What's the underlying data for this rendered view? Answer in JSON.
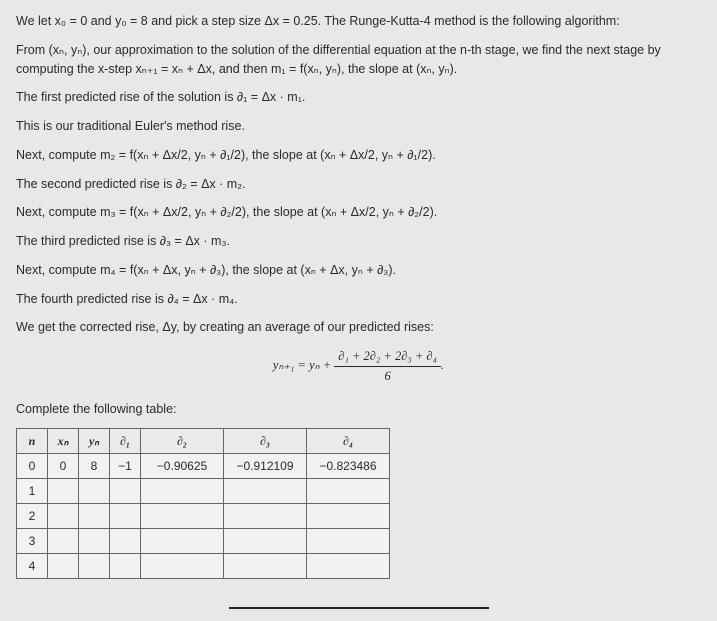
{
  "p1": "We let x₀ = 0 and y₀ = 8 and pick a step size Δx = 0.25. The Runge-Kutta-4 method is the following algorithm:",
  "p2": "From (xₙ, yₙ), our approximation to the solution of the differential equation at the n-th stage, we find the next stage by computing the x-step xₙ₊₁ = xₙ + Δx, and then m₁ = f(xₙ, yₙ), the slope at (xₙ, yₙ).",
  "p3": "The first predicted rise of the solution is ∂₁ = Δx · m₁.",
  "p4": "This is our traditional Euler's method rise.",
  "p5": "Next, compute m₂ = f(xₙ + Δx/2, yₙ + ∂₁/2), the slope at (xₙ + Δx/2, yₙ + ∂₁/2).",
  "p6": "The second predicted rise is ∂₂ = Δx · m₂.",
  "p7": "Next, compute m₃ = f(xₙ + Δx/2, yₙ + ∂₂/2), the slope at (xₙ + Δx/2, yₙ + ∂₂/2).",
  "p8": "The third predicted rise is ∂₃ = Δx · m₃.",
  "p9": "Next, compute m₄ = f(xₙ + Δx, yₙ + ∂₃), the slope at (xₙ + Δx, yₙ + ∂₃).",
  "p10": "The fourth predicted rise is ∂₄ = Δx · m₄.",
  "p11": "We get the corrected rise, Δy, by creating an average of our predicted rises:",
  "formula_lhs": "yₙ₊₁ = yₙ + ",
  "formula_num": "∂₁ + 2∂₂ + 2∂₃ + ∂₄",
  "formula_den": "6",
  "p12": "Complete the following table:",
  "headers": {
    "h0": "n",
    "h1": "xₙ",
    "h2": "yₙ",
    "h3": "∂₁",
    "h4": "∂₂",
    "h5": "∂₃",
    "h6": "∂₄"
  },
  "row0": {
    "n": "0",
    "x": "0",
    "y": "8",
    "d1": "−1",
    "d2": "−0.90625",
    "d3": "−0.912109",
    "d4": "−0.823486"
  },
  "rows": {
    "r1": "1",
    "r2": "2",
    "r3": "3",
    "r4": "4"
  }
}
